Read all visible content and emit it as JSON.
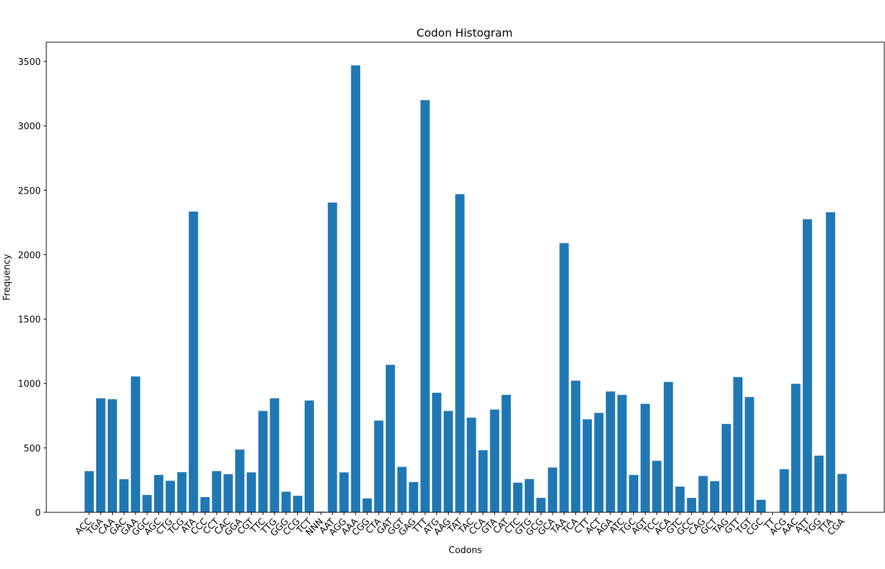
{
  "chart_data": {
    "type": "bar",
    "title": "Codon Histogram",
    "xlabel": "Codons",
    "ylabel": "Frequency",
    "ylim": [
      0,
      3650
    ],
    "yticks": [
      "0",
      "500",
      "1000",
      "1500",
      "2000",
      "2500",
      "3000",
      "3500"
    ],
    "grid": false,
    "bar_color": "#1f77b4",
    "categories": [
      "ACC",
      "TGA",
      "CAA",
      "GAC",
      "GAA",
      "GGC",
      "AGC",
      "CTG",
      "TCG",
      "ATA",
      "CCC",
      "CCT",
      "CAC",
      "GGA",
      "CGT",
      "TTC",
      "TTG",
      "GGG",
      "CCG",
      "TCT",
      "NNN",
      "AAT",
      "AGG",
      "AAA",
      "CGG",
      "CTA",
      "GAT",
      "GGT",
      "GAG",
      "TTT",
      "ATG",
      "AAG",
      "TAT",
      "TAC",
      "CCA",
      "GTA",
      "CAT",
      "CTC",
      "GTG",
      "GCG",
      "GCA",
      "TAA",
      "TCA",
      "CTT",
      "ACT",
      "AGA",
      "ATC",
      "TGC",
      "AGT",
      "TCC",
      "ACA",
      "GTC",
      "GCC",
      "CAG",
      "GCT",
      "TAG",
      "GTT",
      "TGT",
      "CGC",
      "TT",
      "ACG",
      "AAC",
      "ATT",
      "TGG",
      "TTA",
      "CGA"
    ],
    "values": [
      320,
      885,
      878,
      257,
      1055,
      135,
      290,
      245,
      312,
      2335,
      118,
      320,
      296,
      487,
      310,
      787,
      885,
      160,
      128,
      868,
      5,
      2405,
      310,
      3470,
      108,
      712,
      1145,
      353,
      235,
      3200,
      928,
      787,
      2470,
      735,
      482,
      798,
      912,
      230,
      258,
      112,
      348,
      2090,
      1022,
      722,
      772,
      938,
      912,
      290,
      842,
      400,
      1012,
      200,
      112,
      282,
      242,
      686,
      1050,
      895,
      97,
      0,
      335,
      998,
      2275,
      440,
      2330,
      298
    ]
  }
}
